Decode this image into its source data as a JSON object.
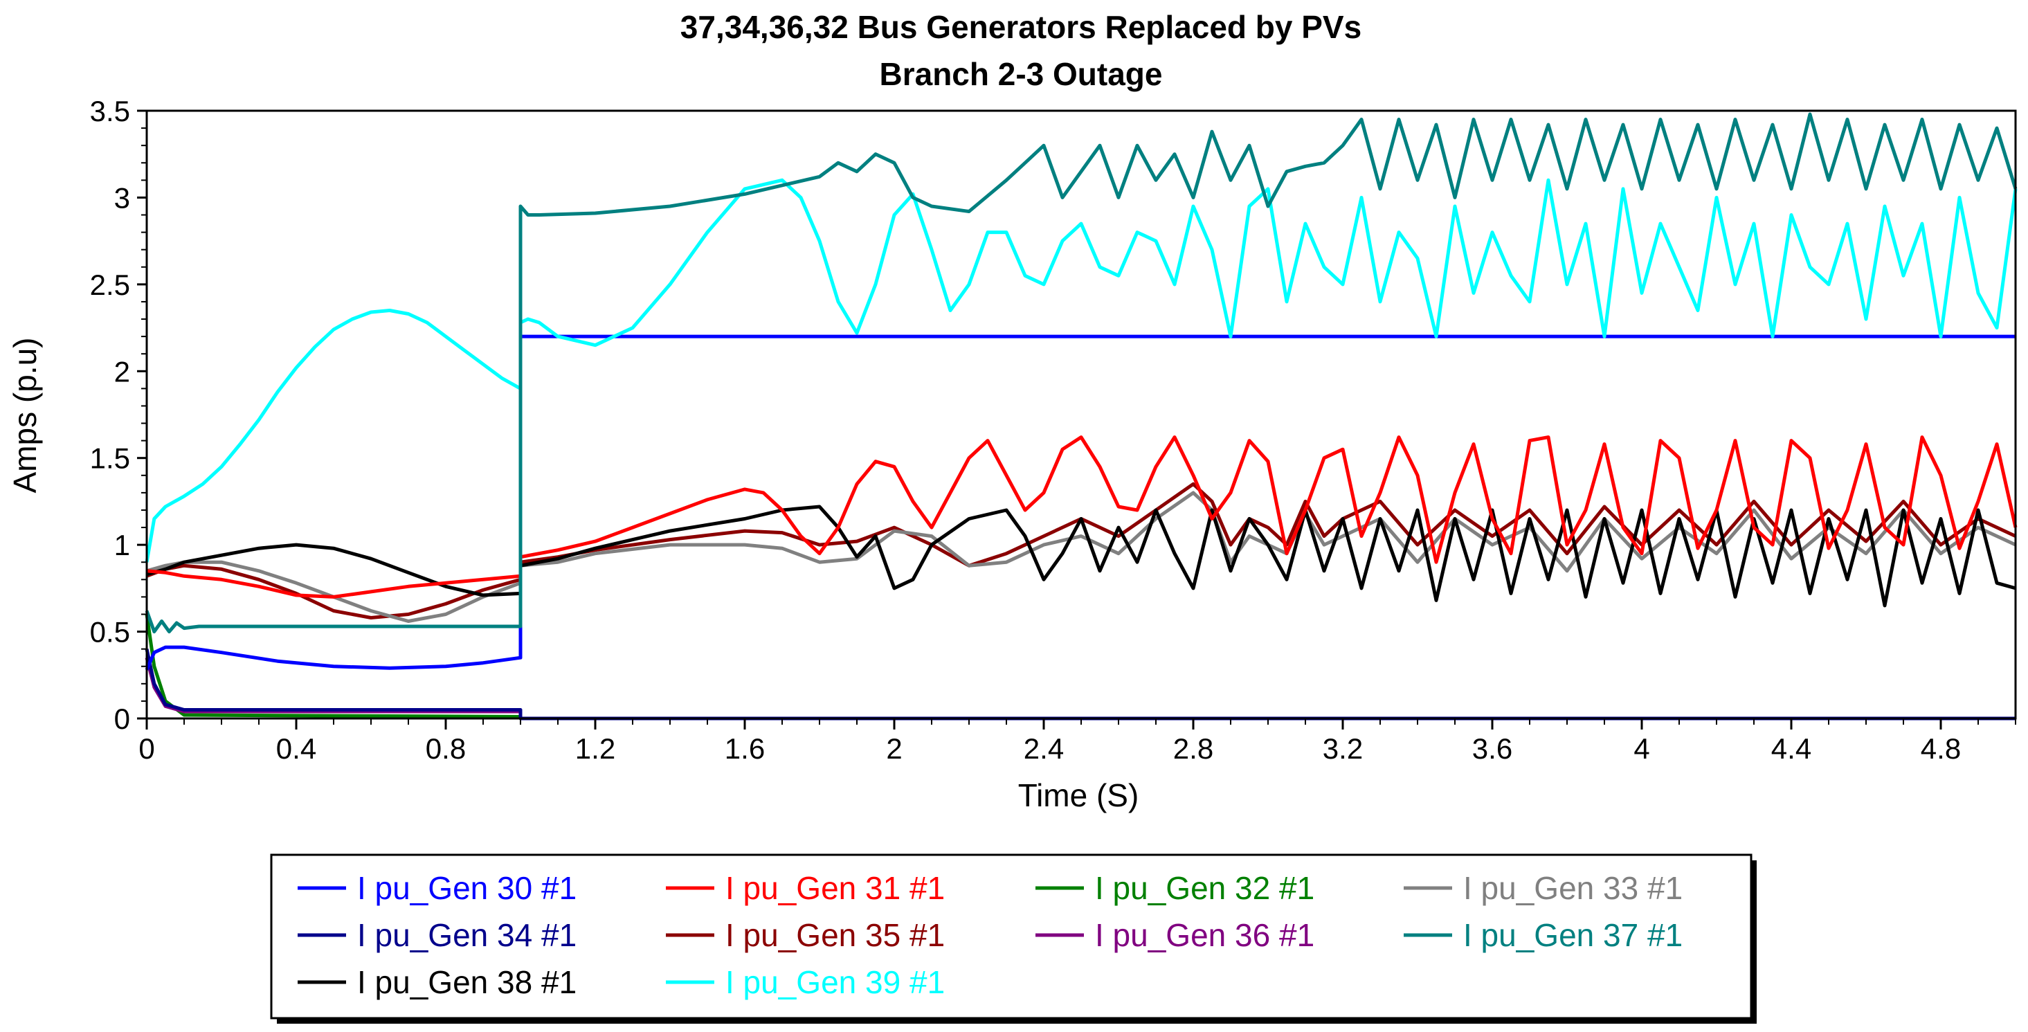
{
  "chart_data": {
    "type": "line",
    "title": "37,34,36,32  Bus Generators Replaced by PVs",
    "subtitle": "Branch 2-3 Outage",
    "xlabel": "Time (S)",
    "ylabel": "Amps (p.u)",
    "xlim": [
      0,
      5.0
    ],
    "ylim": [
      0,
      3.5
    ],
    "xticks": [
      0,
      0.4,
      0.8,
      1.2,
      1.6,
      2,
      2.4,
      2.8,
      3.2,
      3.6,
      4,
      4.4,
      4.8
    ],
    "xtick_labels": [
      "0",
      "0.4",
      "0.8",
      "1.2",
      "1.6",
      "2",
      "2.4",
      "2.8",
      "3.2",
      "3.6",
      "4",
      "4.4",
      "4.8"
    ],
    "yticks": [
      0,
      0.5,
      1,
      1.5,
      2,
      2.5,
      3,
      3.5
    ],
    "ytick_labels": [
      "0",
      "0.5",
      "1",
      "1.5",
      "2",
      "2.5",
      "3",
      "3.5"
    ],
    "grid": false,
    "legend_position": "bottom",
    "series": [
      {
        "name": "I pu_Gen 30 #1",
        "color": "#0000ff",
        "x": [
          0,
          0.02,
          0.05,
          0.1,
          0.2,
          0.35,
          0.5,
          0.65,
          0.8,
          0.9,
          1.0,
          1.0,
          5.0
        ],
        "y": [
          0.28,
          0.38,
          0.41,
          0.41,
          0.38,
          0.33,
          0.3,
          0.29,
          0.3,
          0.32,
          0.35,
          2.2,
          2.2
        ]
      },
      {
        "name": "I pu_Gen 31 #1",
        "color": "#ff0000",
        "x": [
          0,
          0.05,
          0.1,
          0.2,
          0.3,
          0.4,
          0.5,
          0.6,
          0.7,
          0.8,
          0.9,
          1.0,
          1.0,
          1.1,
          1.2,
          1.3,
          1.4,
          1.5,
          1.6,
          1.65,
          1.7,
          1.75,
          1.8,
          1.85,
          1.9,
          1.95,
          2.0,
          2.05,
          2.1,
          2.15,
          2.2,
          2.25,
          2.3,
          2.35,
          2.4,
          2.45,
          2.5,
          2.55,
          2.6,
          2.65,
          2.7,
          2.75,
          2.8,
          2.85,
          2.9,
          2.95,
          3.0,
          3.05,
          3.1,
          3.15,
          3.2,
          3.25,
          3.3,
          3.35,
          3.4,
          3.45,
          3.5,
          3.55,
          3.6,
          3.65,
          3.7,
          3.75,
          3.8,
          3.85,
          3.9,
          3.95,
          4.0,
          4.05,
          4.1,
          4.15,
          4.2,
          4.25,
          4.3,
          4.35,
          4.4,
          4.45,
          4.5,
          4.55,
          4.6,
          4.65,
          4.7,
          4.75,
          4.8,
          4.85,
          4.9,
          4.95,
          5.0
        ],
        "y": [
          0.85,
          0.84,
          0.82,
          0.8,
          0.76,
          0.71,
          0.7,
          0.73,
          0.76,
          0.78,
          0.8,
          0.82,
          0.93,
          0.97,
          1.02,
          1.1,
          1.18,
          1.26,
          1.32,
          1.3,
          1.2,
          1.05,
          0.95,
          1.1,
          1.35,
          1.48,
          1.45,
          1.25,
          1.1,
          1.3,
          1.5,
          1.6,
          1.4,
          1.2,
          1.3,
          1.55,
          1.62,
          1.45,
          1.22,
          1.2,
          1.45,
          1.62,
          1.4,
          1.15,
          1.3,
          1.6,
          1.48,
          0.95,
          1.2,
          1.5,
          1.55,
          1.05,
          1.3,
          1.62,
          1.4,
          0.9,
          1.3,
          1.58,
          1.15,
          0.95,
          1.6,
          1.62,
          1.0,
          1.2,
          1.58,
          1.1,
          0.95,
          1.6,
          1.5,
          0.98,
          1.2,
          1.6,
          1.1,
          1.0,
          1.6,
          1.5,
          0.98,
          1.2,
          1.58,
          1.1,
          1.0,
          1.62,
          1.4,
          0.98,
          1.25,
          1.58,
          1.1
        ]
      },
      {
        "name": "I pu_Gen 32 #1",
        "color": "#008000",
        "x": [
          0,
          0.02,
          0.05,
          0.1,
          1.0,
          1.0,
          5.0
        ],
        "y": [
          0.6,
          0.3,
          0.1,
          0.02,
          0.01,
          0.0,
          0.0
        ]
      },
      {
        "name": "I pu_Gen 33 #1",
        "color": "#808080",
        "x": [
          0,
          0.05,
          0.1,
          0.2,
          0.3,
          0.4,
          0.5,
          0.6,
          0.7,
          0.8,
          0.9,
          1.0,
          1.0,
          1.1,
          1.2,
          1.4,
          1.6,
          1.7,
          1.8,
          1.9,
          2.0,
          2.1,
          2.2,
          2.3,
          2.4,
          2.5,
          2.6,
          2.7,
          2.8,
          2.85,
          2.9,
          2.95,
          3.0,
          3.05,
          3.1,
          3.15,
          3.2,
          3.3,
          3.4,
          3.5,
          3.6,
          3.7,
          3.8,
          3.9,
          4.0,
          4.1,
          4.2,
          4.3,
          4.4,
          4.5,
          4.6,
          4.7,
          4.8,
          4.9,
          5.0
        ],
        "y": [
          0.85,
          0.88,
          0.9,
          0.9,
          0.85,
          0.78,
          0.7,
          0.62,
          0.56,
          0.6,
          0.7,
          0.78,
          0.88,
          0.9,
          0.95,
          1.0,
          1.0,
          0.98,
          0.9,
          0.92,
          1.08,
          1.05,
          0.88,
          0.9,
          1.0,
          1.05,
          0.95,
          1.15,
          1.3,
          1.2,
          0.9,
          1.05,
          1.0,
          0.95,
          1.18,
          1.0,
          1.05,
          1.15,
          0.9,
          1.15,
          1.0,
          1.1,
          0.85,
          1.15,
          0.92,
          1.1,
          0.95,
          1.2,
          0.92,
          1.1,
          0.95,
          1.2,
          0.95,
          1.1,
          1.0
        ]
      },
      {
        "name": "I pu_Gen 34 #1",
        "color": "#00008b",
        "x": [
          0,
          0.02,
          0.05,
          0.1,
          0.5,
          1.0,
          1.0,
          5.0
        ],
        "y": [
          0.4,
          0.2,
          0.08,
          0.05,
          0.05,
          0.05,
          0.0,
          0.0
        ]
      },
      {
        "name": "I pu_Gen 35 #1",
        "color": "#8b0000",
        "x": [
          0,
          0.05,
          0.1,
          0.2,
          0.3,
          0.4,
          0.5,
          0.6,
          0.7,
          0.8,
          0.9,
          1.0,
          1.0,
          1.1,
          1.2,
          1.4,
          1.6,
          1.7,
          1.8,
          1.9,
          2.0,
          2.1,
          2.2,
          2.3,
          2.4,
          2.5,
          2.6,
          2.7,
          2.8,
          2.85,
          2.9,
          2.95,
          3.0,
          3.05,
          3.1,
          3.15,
          3.2,
          3.3,
          3.4,
          3.5,
          3.6,
          3.7,
          3.8,
          3.9,
          4.0,
          4.1,
          4.2,
          4.3,
          4.4,
          4.5,
          4.6,
          4.7,
          4.8,
          4.9,
          5.0
        ],
        "y": [
          0.82,
          0.86,
          0.88,
          0.86,
          0.8,
          0.72,
          0.62,
          0.58,
          0.6,
          0.66,
          0.74,
          0.8,
          0.9,
          0.93,
          0.97,
          1.03,
          1.08,
          1.07,
          1.0,
          1.02,
          1.1,
          1.0,
          0.88,
          0.95,
          1.05,
          1.15,
          1.05,
          1.2,
          1.35,
          1.25,
          1.0,
          1.15,
          1.1,
          1.0,
          1.25,
          1.05,
          1.15,
          1.25,
          1.0,
          1.2,
          1.05,
          1.2,
          0.95,
          1.22,
          1.0,
          1.2,
          1.0,
          1.25,
          1.0,
          1.2,
          1.02,
          1.25,
          1.0,
          1.15,
          1.05
        ]
      },
      {
        "name": "I pu_Gen 36 #1",
        "color": "#800080",
        "x": [
          0,
          0.02,
          0.05,
          0.1,
          0.5,
          1.0,
          1.0,
          5.0
        ],
        "y": [
          0.35,
          0.18,
          0.07,
          0.04,
          0.04,
          0.04,
          0.0,
          0.0
        ]
      },
      {
        "name": "I pu_Gen 37 #1",
        "color": "#008080",
        "x": [
          0,
          0.02,
          0.04,
          0.06,
          0.08,
          0.1,
          0.14,
          0.2,
          0.5,
          0.8,
          1.0,
          1.0,
          1.02,
          1.05,
          1.2,
          1.4,
          1.6,
          1.8,
          1.85,
          1.9,
          1.95,
          2.0,
          2.05,
          2.1,
          2.2,
          2.3,
          2.35,
          2.4,
          2.45,
          2.5,
          2.55,
          2.6,
          2.65,
          2.7,
          2.75,
          2.8,
          2.85,
          2.9,
          2.95,
          3.0,
          3.05,
          3.1,
          3.15,
          3.2,
          3.25,
          3.3,
          3.35,
          3.4,
          3.45,
          3.5,
          3.55,
          3.6,
          3.65,
          3.7,
          3.75,
          3.8,
          3.85,
          3.9,
          3.95,
          4.0,
          4.05,
          4.1,
          4.15,
          4.2,
          4.25,
          4.3,
          4.35,
          4.4,
          4.45,
          4.5,
          4.55,
          4.6,
          4.65,
          4.7,
          4.75,
          4.8,
          4.85,
          4.9,
          4.95,
          5.0
        ],
        "y": [
          0.62,
          0.5,
          0.56,
          0.5,
          0.55,
          0.52,
          0.53,
          0.53,
          0.53,
          0.53,
          0.53,
          2.95,
          2.9,
          2.9,
          2.91,
          2.95,
          3.02,
          3.12,
          3.2,
          3.15,
          3.25,
          3.2,
          3.0,
          2.95,
          2.92,
          3.1,
          3.2,
          3.3,
          3.0,
          3.15,
          3.3,
          3.0,
          3.3,
          3.1,
          3.25,
          3.0,
          3.38,
          3.1,
          3.3,
          2.95,
          3.15,
          3.18,
          3.2,
          3.3,
          3.45,
          3.05,
          3.45,
          3.1,
          3.42,
          3.0,
          3.45,
          3.1,
          3.45,
          3.1,
          3.42,
          3.05,
          3.45,
          3.1,
          3.42,
          3.05,
          3.45,
          3.1,
          3.42,
          3.05,
          3.45,
          3.1,
          3.42,
          3.05,
          3.48,
          3.1,
          3.45,
          3.05,
          3.42,
          3.1,
          3.45,
          3.05,
          3.42,
          3.1,
          3.4,
          3.05
        ]
      },
      {
        "name": "I pu_Gen 38 #1",
        "color": "#000000",
        "x": [
          0,
          0.05,
          0.1,
          0.2,
          0.3,
          0.4,
          0.5,
          0.6,
          0.7,
          0.8,
          0.9,
          1.0,
          1.0,
          1.1,
          1.2,
          1.4,
          1.6,
          1.7,
          1.8,
          1.85,
          1.9,
          1.95,
          2.0,
          2.05,
          2.1,
          2.2,
          2.3,
          2.35,
          2.4,
          2.45,
          2.5,
          2.55,
          2.6,
          2.65,
          2.7,
          2.75,
          2.8,
          2.85,
          2.9,
          2.95,
          3.0,
          3.05,
          3.1,
          3.15,
          3.2,
          3.25,
          3.3,
          3.35,
          3.4,
          3.45,
          3.5,
          3.55,
          3.6,
          3.65,
          3.7,
          3.75,
          3.8,
          3.85,
          3.9,
          3.95,
          4.0,
          4.05,
          4.1,
          4.15,
          4.2,
          4.25,
          4.3,
          4.35,
          4.4,
          4.45,
          4.5,
          4.55,
          4.6,
          4.65,
          4.7,
          4.75,
          4.8,
          4.85,
          4.9,
          4.95,
          5.0
        ],
        "y": [
          0.83,
          0.86,
          0.9,
          0.94,
          0.98,
          1.0,
          0.98,
          0.92,
          0.84,
          0.76,
          0.71,
          0.72,
          0.88,
          0.92,
          0.98,
          1.08,
          1.15,
          1.2,
          1.22,
          1.1,
          0.93,
          1.05,
          0.75,
          0.8,
          1.0,
          1.15,
          1.2,
          1.05,
          0.8,
          0.95,
          1.15,
          0.85,
          1.1,
          0.9,
          1.2,
          0.95,
          0.75,
          1.2,
          0.85,
          1.15,
          1.0,
          0.8,
          1.2,
          0.85,
          1.15,
          0.75,
          1.15,
          0.85,
          1.2,
          0.68,
          1.15,
          0.8,
          1.2,
          0.72,
          1.15,
          0.8,
          1.2,
          0.7,
          1.15,
          0.78,
          1.2,
          0.72,
          1.15,
          0.8,
          1.2,
          0.7,
          1.15,
          0.78,
          1.2,
          0.72,
          1.15,
          0.8,
          1.2,
          0.65,
          1.2,
          0.78,
          1.15,
          0.72,
          1.2,
          0.78,
          0.75
        ]
      },
      {
        "name": "I pu_Gen 39 #1",
        "color": "#00ffff",
        "x": [
          0,
          0.02,
          0.05,
          0.1,
          0.15,
          0.2,
          0.25,
          0.3,
          0.35,
          0.4,
          0.45,
          0.5,
          0.55,
          0.6,
          0.65,
          0.7,
          0.75,
          0.8,
          0.85,
          0.9,
          0.95,
          1.0,
          1.0,
          1.02,
          1.05,
          1.1,
          1.2,
          1.3,
          1.4,
          1.5,
          1.6,
          1.7,
          1.75,
          1.8,
          1.85,
          1.9,
          1.95,
          2.0,
          2.05,
          2.1,
          2.15,
          2.2,
          2.25,
          2.3,
          2.35,
          2.4,
          2.45,
          2.5,
          2.55,
          2.6,
          2.65,
          2.7,
          2.75,
          2.8,
          2.85,
          2.9,
          2.95,
          3.0,
          3.05,
          3.1,
          3.15,
          3.2,
          3.25,
          3.3,
          3.35,
          3.4,
          3.45,
          3.5,
          3.55,
          3.6,
          3.65,
          3.7,
          3.75,
          3.8,
          3.85,
          3.9,
          3.95,
          4.0,
          4.05,
          4.1,
          4.15,
          4.2,
          4.25,
          4.3,
          4.35,
          4.4,
          4.45,
          4.5,
          4.55,
          4.6,
          4.65,
          4.7,
          4.75,
          4.8,
          4.85,
          4.9,
          4.95,
          5.0
        ],
        "y": [
          0.9,
          1.15,
          1.22,
          1.28,
          1.35,
          1.45,
          1.58,
          1.72,
          1.88,
          2.02,
          2.14,
          2.24,
          2.3,
          2.34,
          2.35,
          2.33,
          2.28,
          2.2,
          2.12,
          2.04,
          1.96,
          1.9,
          2.28,
          2.3,
          2.28,
          2.2,
          2.15,
          2.25,
          2.5,
          2.8,
          3.05,
          3.1,
          3.0,
          2.75,
          2.4,
          2.22,
          2.5,
          2.9,
          3.02,
          2.7,
          2.35,
          2.5,
          2.8,
          2.8,
          2.55,
          2.5,
          2.75,
          2.85,
          2.6,
          2.55,
          2.8,
          2.75,
          2.5,
          2.95,
          2.7,
          2.2,
          2.95,
          3.05,
          2.4,
          2.85,
          2.6,
          2.5,
          3.0,
          2.4,
          2.8,
          2.65,
          2.2,
          2.95,
          2.45,
          2.8,
          2.55,
          2.4,
          3.1,
          2.5,
          2.85,
          2.2,
          3.05,
          2.45,
          2.85,
          2.6,
          2.35,
          3.0,
          2.5,
          2.85,
          2.2,
          2.9,
          2.6,
          2.5,
          2.85,
          2.3,
          2.95,
          2.55,
          2.85,
          2.2,
          3.0,
          2.45,
          2.25,
          3.05
        ]
      }
    ]
  }
}
